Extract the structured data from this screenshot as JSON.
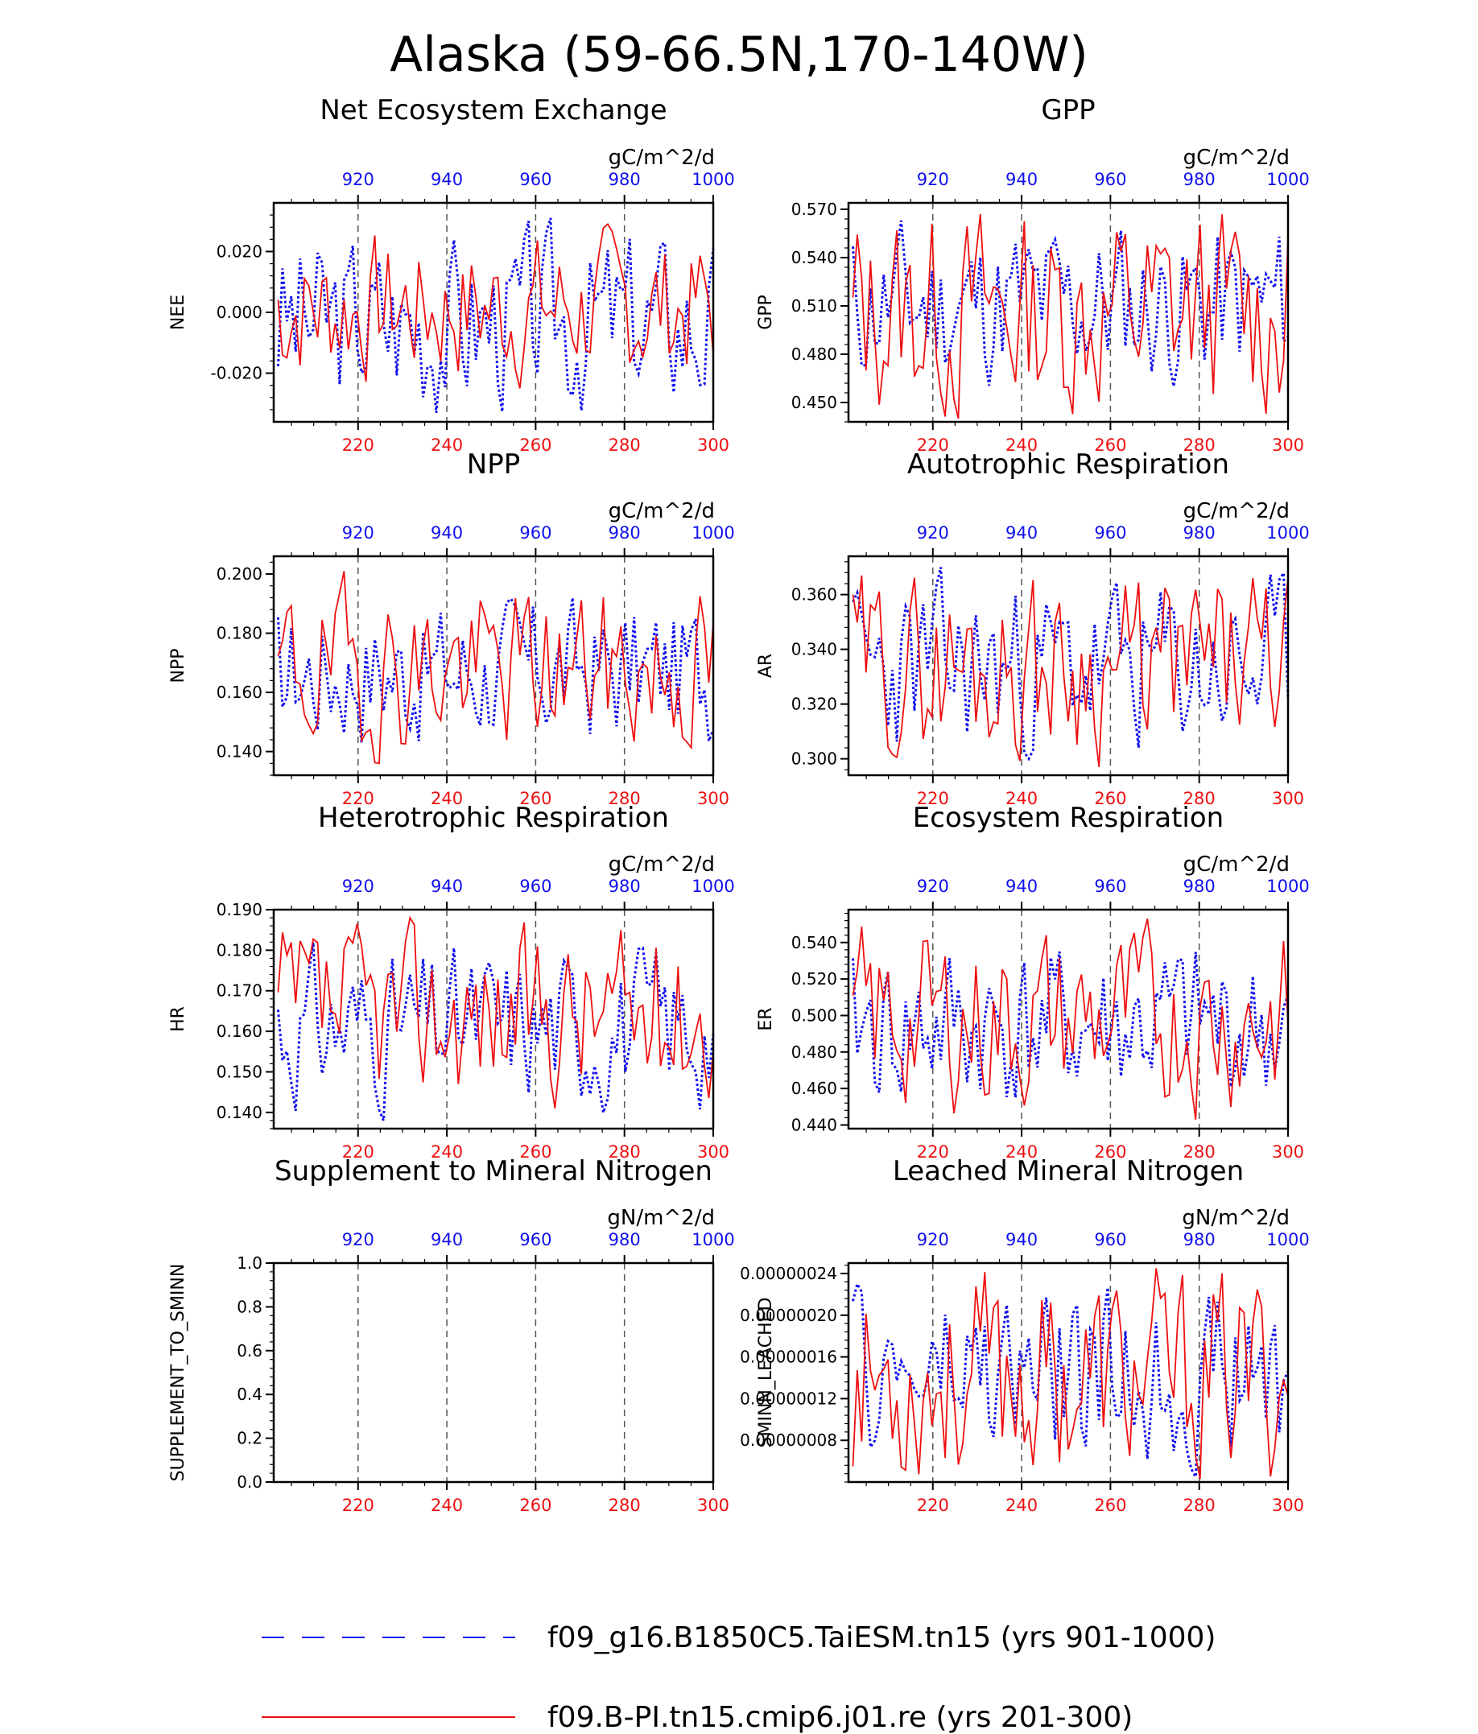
{
  "figure": {
    "main_title": "Alaska (59-66.5N,170-140W)",
    "legend": [
      {
        "label": "f09_g16.B1850C5.TaiESM.tn15 (yrs 901-1000)",
        "color": "#1010ee",
        "style": "dashed"
      },
      {
        "label": "f09.B-PI.tn15.cmip6.j01.re (yrs 201-300)",
        "color": "#ee1010",
        "style": "solid"
      }
    ],
    "colors": {
      "top_axis": "#1010ee",
      "bottom_axis": "#ee1010",
      "frame": "#000000"
    }
  },
  "chart_data": [
    {
      "type": "line",
      "title": "Net Ecosystem Exchange",
      "ylabel": "NEE",
      "units": "gC/m^2/d",
      "ylim": [
        -0.036,
        0.036
      ],
      "yticks": [
        -0.02,
        0.0,
        0.02
      ],
      "ytick_labels": [
        "-0.020",
        "0.000",
        "0.020"
      ],
      "x_bottom": {
        "range": [
          201,
          300
        ],
        "ticks": [
          220,
          240,
          260,
          280,
          300
        ]
      },
      "x_top": {
        "range": [
          901,
          1000
        ],
        "ticks": [
          920,
          940,
          960,
          980,
          1000
        ]
      },
      "series": [
        {
          "amp": 0.008,
          "peak": 0.031,
          "trough": -0.033,
          "mean": 0.0,
          "seed": 3
        },
        {
          "amp": 0.009,
          "peak": 0.029,
          "trough": -0.025,
          "mean": 0.001,
          "seed": 7
        }
      ]
    },
    {
      "type": "line",
      "title": "GPP",
      "ylabel": "GPP",
      "units": "gC/m^2/d",
      "ylim": [
        0.438,
        0.574
      ],
      "yticks": [
        0.45,
        0.48,
        0.51,
        0.54,
        0.57
      ],
      "ytick_labels": [
        "0.450",
        "0.480",
        "0.510",
        "0.540",
        "0.570"
      ],
      "x_bottom": {
        "range": [
          201,
          300
        ],
        "ticks": [
          220,
          240,
          260,
          280,
          300
        ]
      },
      "x_top": {
        "range": [
          901,
          1000
        ],
        "ticks": [
          920,
          940,
          960,
          980,
          1000
        ]
      },
      "series": [
        {
          "amp": 0.02,
          "peak": 0.563,
          "trough": 0.46,
          "mean": 0.51,
          "seed": 11
        },
        {
          "amp": 0.022,
          "peak": 0.567,
          "trough": 0.44,
          "mean": 0.508,
          "seed": 13
        }
      ]
    },
    {
      "type": "line",
      "title": "NPP",
      "ylabel": "NPP",
      "units": "gC/m^2/d",
      "ylim": [
        0.132,
        0.206
      ],
      "yticks": [
        0.14,
        0.16,
        0.18,
        0.2
      ],
      "ytick_labels": [
        "0.140",
        "0.160",
        "0.180",
        "0.200"
      ],
      "x_bottom": {
        "range": [
          201,
          300
        ],
        "ticks": [
          220,
          240,
          260,
          280,
          300
        ]
      },
      "x_top": {
        "range": [
          901,
          1000
        ],
        "ticks": [
          920,
          940,
          960,
          980,
          1000
        ]
      },
      "series": [
        {
          "amp": 0.01,
          "peak": 0.192,
          "trough": 0.143,
          "mean": 0.168,
          "seed": 17
        },
        {
          "amp": 0.011,
          "peak": 0.201,
          "trough": 0.136,
          "mean": 0.17,
          "seed": 19
        }
      ]
    },
    {
      "type": "line",
      "title": "Autotrophic Respiration",
      "ylabel": "AR",
      "units": "gC/m^2/d",
      "ylim": [
        0.294,
        0.374
      ],
      "yticks": [
        0.3,
        0.32,
        0.34,
        0.36
      ],
      "ytick_labels": [
        "0.300",
        "0.320",
        "0.340",
        "0.360"
      ],
      "x_bottom": {
        "range": [
          201,
          300
        ],
        "ticks": [
          220,
          240,
          260,
          280,
          300
        ]
      },
      "x_top": {
        "range": [
          901,
          1000
        ],
        "ticks": [
          920,
          940,
          960,
          980,
          1000
        ]
      },
      "series": [
        {
          "amp": 0.012,
          "peak": 0.37,
          "trough": 0.3,
          "mean": 0.34,
          "seed": 23
        },
        {
          "amp": 0.012,
          "peak": 0.367,
          "trough": 0.297,
          "mean": 0.335,
          "seed": 29
        }
      ]
    },
    {
      "type": "line",
      "title": "Heterotrophic Respiration",
      "ylabel": "HR",
      "units": "gC/m^2/d",
      "ylim": [
        0.136,
        0.19
      ],
      "yticks": [
        0.14,
        0.15,
        0.16,
        0.17,
        0.18,
        0.19
      ],
      "ytick_labels": [
        "0.140",
        "0.150",
        "0.160",
        "0.170",
        "0.180",
        "0.190"
      ],
      "x_bottom": {
        "range": [
          201,
          300
        ],
        "ticks": [
          220,
          240,
          260,
          280,
          300
        ]
      },
      "x_top": {
        "range": [
          901,
          1000
        ],
        "ticks": [
          920,
          940,
          960,
          980,
          1000
        ]
      },
      "series": [
        {
          "amp": 0.006,
          "peak": 0.182,
          "trough": 0.138,
          "mean": 0.161,
          "seed": 31
        },
        {
          "amp": 0.007,
          "peak": 0.188,
          "trough": 0.141,
          "mean": 0.165,
          "seed": 37
        }
      ]
    },
    {
      "type": "line",
      "title": "Ecosystem Respiration",
      "ylabel": "ER",
      "units": "gC/m^2/d",
      "ylim": [
        0.438,
        0.558
      ],
      "yticks": [
        0.44,
        0.46,
        0.48,
        0.5,
        0.52,
        0.54
      ],
      "ytick_labels": [
        "0.440",
        "0.460",
        "0.480",
        "0.500",
        "0.520",
        "0.540"
      ],
      "x_bottom": {
        "range": [
          201,
          300
        ],
        "ticks": [
          220,
          240,
          260,
          280,
          300
        ]
      },
      "x_top": {
        "range": [
          901,
          1000
        ],
        "ticks": [
          920,
          940,
          960,
          980,
          1000
        ]
      },
      "series": [
        {
          "amp": 0.017,
          "peak": 0.535,
          "trough": 0.455,
          "mean": 0.5,
          "seed": 41
        },
        {
          "amp": 0.018,
          "peak": 0.553,
          "trough": 0.443,
          "mean": 0.502,
          "seed": 43
        }
      ]
    },
    {
      "type": "line",
      "title": "Supplement to Mineral Nitrogen",
      "ylabel": "SUPPLEMENT_TO_SMINN",
      "units": "gN/m^2/d",
      "ylim": [
        0,
        1
      ],
      "yticks": [
        0,
        0.2,
        0.4,
        0.6,
        0.8,
        1.0
      ],
      "ytick_labels": [
        "0.0",
        "0.2",
        "0.4",
        "0.6",
        "0.8",
        "1.0"
      ],
      "x_bottom": {
        "range": [
          201,
          300
        ],
        "ticks": [
          220,
          240,
          260,
          280,
          300
        ]
      },
      "x_top": {
        "range": [
          901,
          1000
        ],
        "ticks": [
          920,
          940,
          960,
          980,
          1000
        ]
      },
      "series": []
    },
    {
      "type": "line",
      "title": "Leached Mineral Nitrogen",
      "ylabel": "SMINN_LEACHED",
      "units": "gN/m^2/d",
      "ylim": [
        4e-08,
        2.5e-07
      ],
      "yticks": [
        8e-08,
        1.2e-07,
        1.6e-07,
        2e-07,
        2.4e-07
      ],
      "ytick_labels": [
        "0.00000008",
        "0.00000012",
        "0.00000016",
        "0.00000020",
        "0.00000024"
      ],
      "x_bottom": {
        "range": [
          201,
          300
        ],
        "ticks": [
          220,
          240,
          260,
          280,
          300
        ]
      },
      "x_top": {
        "range": [
          901,
          1000
        ],
        "ticks": [
          920,
          940,
          960,
          980,
          1000
        ]
      },
      "series": [
        {
          "amp": 3e-08,
          "peak": 2.3e-07,
          "trough": 4.5e-08,
          "mean": 1.15e-07,
          "seed": 47
        },
        {
          "amp": 3.5e-08,
          "peak": 2.45e-07,
          "trough": 4.3e-08,
          "mean": 1.12e-07,
          "seed": 53
        }
      ]
    }
  ]
}
